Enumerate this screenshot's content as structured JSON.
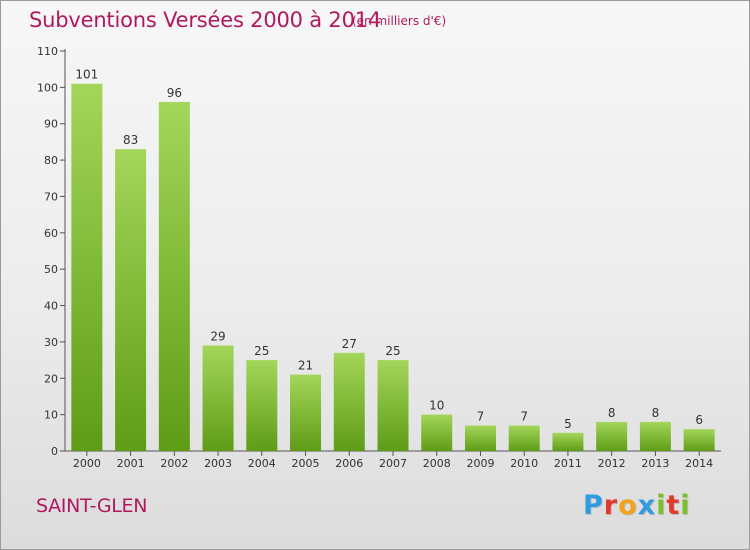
{
  "title": "Subventions Versées 2000 à 2014",
  "unit": "(en milliers d'€)",
  "commune": "SAINT-GLEN",
  "logo": {
    "text": "Proxiti",
    "letters": [
      {
        "ch": "P",
        "color": "#2f9be0"
      },
      {
        "ch": "r",
        "color": "#e2392d"
      },
      {
        "ch": "o",
        "color": "#f2a21b"
      },
      {
        "ch": "x",
        "color": "#2f9be0"
      },
      {
        "ch": "i",
        "color": "#7cbf2a"
      },
      {
        "ch": "t",
        "color": "#e2392d"
      },
      {
        "ch": "i",
        "color": "#7cbf2a"
      }
    ]
  },
  "colors": {
    "title": "#b0195e",
    "bar_top": "#a3d65a",
    "bar_bottom": "#5f9c16",
    "grid": "#cfcfcf",
    "axis": "#555555"
  },
  "chart_data": {
    "type": "bar",
    "title": "Subventions Versées 2000 à 2014",
    "xlabel": "",
    "ylabel": "",
    "categories": [
      "2000",
      "2001",
      "2002",
      "2003",
      "2004",
      "2005",
      "2006",
      "2007",
      "2008",
      "2009",
      "2010",
      "2011",
      "2012",
      "2013",
      "2014"
    ],
    "values": [
      101,
      83,
      96,
      29,
      25,
      21,
      27,
      25,
      10,
      7,
      7,
      5,
      8,
      8,
      6
    ],
    "ylim": [
      0,
      110
    ],
    "yticks": [
      0,
      10,
      20,
      30,
      40,
      50,
      60,
      70,
      80,
      90,
      100,
      110
    ],
    "grid": false,
    "data_labels": true
  }
}
